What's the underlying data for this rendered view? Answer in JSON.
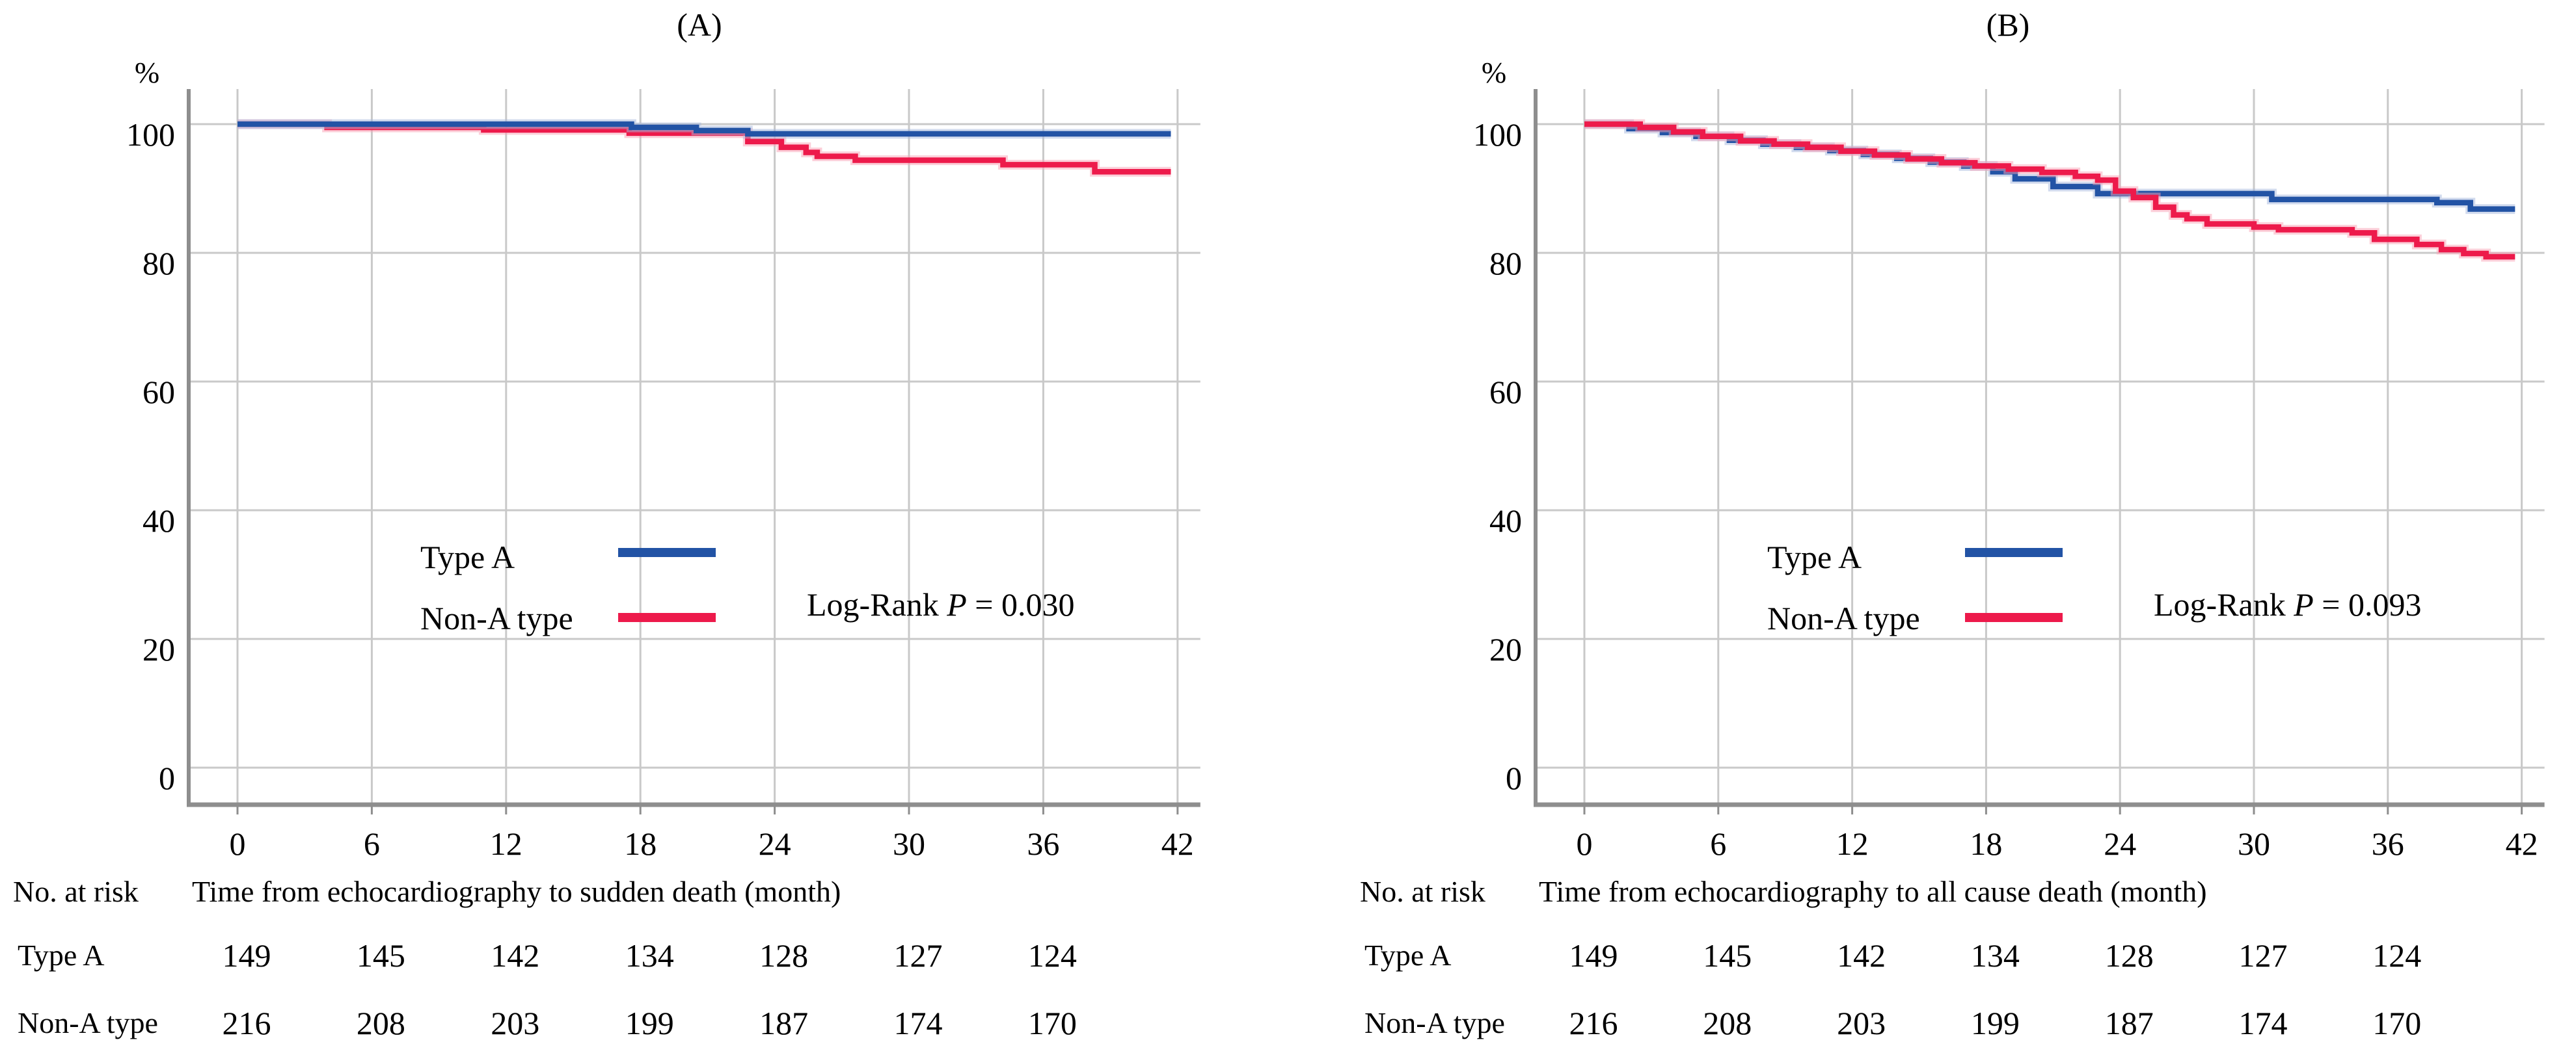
{
  "colors": {
    "type_a_blue": "#2253A5",
    "type_a_halo": "#A6B8DD",
    "non_a_red": "#ED1A4B",
    "non_a_halo": "#F9A2B6",
    "gridline": "#C9C9C9",
    "axis": "#8E8E8E",
    "text": "#000000",
    "background": "#FFFFFF"
  },
  "chart_data": [
    {
      "type": "line",
      "subtype": "kaplan-meier-step",
      "title": "(A)",
      "ylabel": "%",
      "xlabel": "Time from echocardiography to sudden death (month)",
      "xlim": [
        0,
        42
      ],
      "ylim": [
        0,
        105
      ],
      "x_ticks": [
        0,
        6,
        12,
        18,
        24,
        30,
        36,
        42
      ],
      "y_ticks": [
        100,
        80,
        60,
        40,
        20,
        0
      ],
      "grid": true,
      "legend_position": "inside-lower-center",
      "annotation": {
        "prefix": "Log-Rank",
        "variable": "P",
        "rest": "= 0.030"
      },
      "series": [
        {
          "name": "Type A",
          "color": "#2253A5",
          "steps": [
            [
              0,
              100
            ],
            [
              17.6,
              99.5
            ],
            [
              20.5,
              99.0
            ],
            [
              22.8,
              98.5
            ]
          ]
        },
        {
          "name": "Non-A type",
          "color": "#ED1A4B",
          "steps": [
            [
              0,
              100
            ],
            [
              4,
              99.5
            ],
            [
              11,
              99.1
            ],
            [
              17.5,
              98.6
            ],
            [
              22.8,
              97.3
            ],
            [
              24.3,
              96.4
            ],
            [
              25.4,
              95.6
            ],
            [
              25.9,
              95.0
            ],
            [
              27.6,
              94.4
            ],
            [
              34.2,
              93.7
            ],
            [
              38.3,
              92.6
            ]
          ]
        }
      ],
      "risk_table": {
        "header": "No. at risk",
        "count_months": [
          0,
          6,
          12,
          18,
          24,
          30,
          36
        ],
        "rows": [
          {
            "label": "Type A",
            "counts": [
              149,
              145,
              142,
              134,
              128,
              127,
              124
            ]
          },
          {
            "label": "Non-A type",
            "counts": [
              216,
              208,
              203,
              199,
              187,
              174,
              170
            ]
          }
        ]
      }
    },
    {
      "type": "line",
      "subtype": "kaplan-meier-step",
      "title": "(B)",
      "ylabel": "%",
      "xlabel": "Time from echocardiography to all cause death (month)",
      "xlim": [
        0,
        42
      ],
      "ylim": [
        0,
        105
      ],
      "x_ticks": [
        0,
        6,
        12,
        18,
        24,
        30,
        36,
        42
      ],
      "y_ticks": [
        100,
        80,
        60,
        40,
        20,
        0
      ],
      "grid": true,
      "legend_position": "inside-lower-center",
      "annotation": {
        "prefix": "Log-Rank",
        "variable": "P",
        "rest": "= 0.093"
      },
      "series": [
        {
          "name": "Type A",
          "color": "#2253A5",
          "steps": [
            [
              0,
              100
            ],
            [
              2,
              99.3
            ],
            [
              3.5,
              98.7
            ],
            [
              5,
              98.1
            ],
            [
              6.5,
              97.5
            ],
            [
              8,
              96.9
            ],
            [
              9.5,
              96.4
            ],
            [
              11,
              95.9
            ],
            [
              12.5,
              95.3
            ],
            [
              14,
              94.7
            ],
            [
              15.5,
              94.1
            ],
            [
              17,
              93.5
            ],
            [
              18.3,
              92.6
            ],
            [
              19.3,
              91.5
            ],
            [
              21,
              90.3
            ],
            [
              23,
              89.2
            ],
            [
              30.8,
              88.3
            ],
            [
              38.2,
              87.8
            ],
            [
              39.7,
              86.8
            ]
          ]
        },
        {
          "name": "Non-A type",
          "color": "#ED1A4B",
          "steps": [
            [
              0,
              100
            ],
            [
              2.5,
              99.5
            ],
            [
              4,
              98.8
            ],
            [
              5.3,
              98.1
            ],
            [
              7,
              97.4
            ],
            [
              8.5,
              96.9
            ],
            [
              10,
              96.4
            ],
            [
              11.5,
              95.8
            ],
            [
              13,
              95.2
            ],
            [
              14.5,
              94.6
            ],
            [
              16,
              94.0
            ],
            [
              17.5,
              93.5
            ],
            [
              19,
              93.0
            ],
            [
              20.5,
              92.5
            ],
            [
              22,
              91.9
            ],
            [
              23,
              91.3
            ],
            [
              23.8,
              89.6
            ],
            [
              24.6,
              88.6
            ],
            [
              25.6,
              87.1
            ],
            [
              26.4,
              85.9
            ],
            [
              27,
              85.3
            ],
            [
              27.9,
              84.5
            ],
            [
              30,
              84.0
            ],
            [
              31.1,
              83.6
            ],
            [
              34.4,
              83.1
            ],
            [
              35.4,
              82.1
            ],
            [
              37.3,
              81.3
            ],
            [
              38.4,
              80.5
            ],
            [
              39.4,
              79.9
            ],
            [
              40.4,
              79.4
            ]
          ]
        }
      ],
      "risk_table": {
        "header": "No. at risk",
        "count_months": [
          0,
          6,
          12,
          18,
          24,
          30,
          36
        ],
        "rows": [
          {
            "label": "Type A",
            "counts": [
              149,
              145,
              142,
              134,
              128,
              127,
              124
            ]
          },
          {
            "label": "Non-A type",
            "counts": [
              216,
              208,
              203,
              199,
              187,
              174,
              170
            ]
          }
        ]
      }
    }
  ]
}
